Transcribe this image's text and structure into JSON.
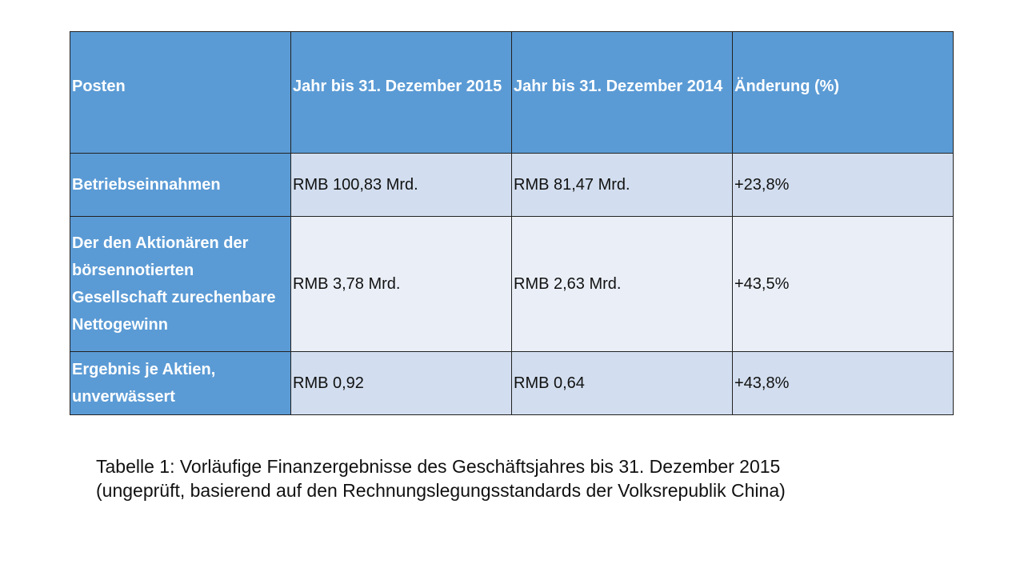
{
  "table": {
    "headers": [
      "Posten",
      "Jahr bis 31. Dezember 2015",
      "Jahr bis 31. Dezember 2014",
      "Änderung (%)"
    ],
    "rows": [
      [
        "Betriebseinnahmen",
        "RMB 100,83 Mrd.",
        "RMB 81,47 Mrd.",
        "+23,8%"
      ],
      [
        "Der den Aktionären der börsennotierten Gesellschaft zurechenbare Nettogewinn",
        "RMB 3,78 Mrd.",
        "RMB 2,63 Mrd.",
        "+43,5%"
      ],
      [
        "Ergebnis je Aktien, unverwässert",
        "RMB 0,92",
        "RMB 0,64",
        "+43,8%"
      ]
    ]
  },
  "caption": {
    "line1": "Tabelle 1: Vorläufige Finanzergebnisse des Geschäftsjahres bis 31. Dezember 2015",
    "line2": "(ungeprüft, basierend auf den Rechnungslegungsstandards der Volksrepublik China)"
  },
  "colors": {
    "header": "#5B9BD5",
    "row_dark": "#D2DEEF",
    "row_light": "#EAEFF7"
  }
}
